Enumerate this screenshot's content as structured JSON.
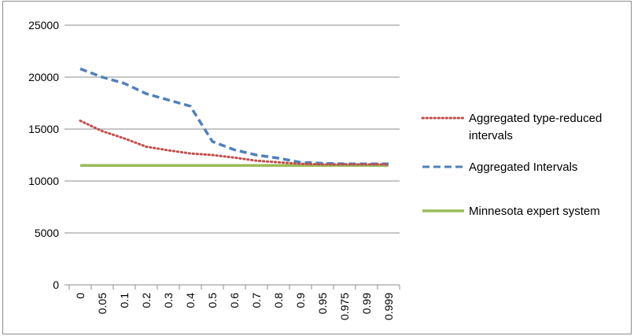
{
  "chart_data": {
    "type": "line",
    "title": "",
    "xlabel": "",
    "ylabel": "",
    "categories": [
      "0",
      "0.05",
      "0.1",
      "0.2",
      "0.3",
      "0.4",
      "0.5",
      "0.6",
      "0.7",
      "0.8",
      "0.9",
      "0.95",
      "0.975",
      "0.99",
      "0.999"
    ],
    "ylim": [
      0,
      25000
    ],
    "yticks": [
      "0",
      "5000",
      "10000",
      "15000",
      "20000",
      "25000"
    ],
    "grid": "horizontal",
    "legend_position": "right",
    "series": [
      {
        "name": "Aggregated type-reduced intervals",
        "name_lines": [
          "Aggregated type-reduced",
          "intervals"
        ],
        "style": "dotted",
        "color": "#c0504d",
        "values": [
          15800,
          14800,
          14100,
          13300,
          12950,
          12650,
          12500,
          12250,
          11950,
          11800,
          11650,
          11600,
          11600,
          11600,
          11600
        ]
      },
      {
        "name": "Aggregated Intervals",
        "name_lines": [
          "Aggregated Intervals"
        ],
        "style": "dashed",
        "color": "#4f81bd",
        "values": [
          20800,
          20000,
          19400,
          18400,
          17800,
          17200,
          13800,
          13000,
          12500,
          12200,
          11800,
          11700,
          11650,
          11650,
          11650
        ]
      },
      {
        "name": "Minnesota expert system",
        "name_lines": [
          "Minnesota expert system"
        ],
        "style": "solid",
        "color": "#9bbb59",
        "values": [
          11500,
          11500,
          11500,
          11500,
          11500,
          11500,
          11500,
          11500,
          11500,
          11500,
          11500,
          11500,
          11500,
          11500,
          11500
        ]
      }
    ]
  }
}
